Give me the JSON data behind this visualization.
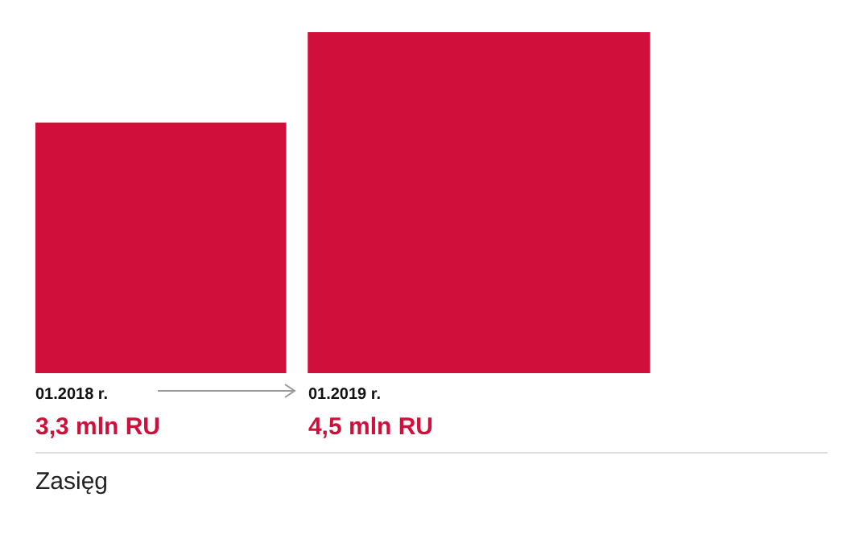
{
  "chart_data": {
    "type": "bar",
    "title": "Zasięg",
    "categories": [
      "01.2018 r.",
      "01.2019 r."
    ],
    "values": [
      3.3,
      4.5
    ],
    "color": "#d0103a",
    "value_labels": [
      "3,3 mln RU",
      "4,5 mln RU"
    ],
    "legend": false
  }
}
